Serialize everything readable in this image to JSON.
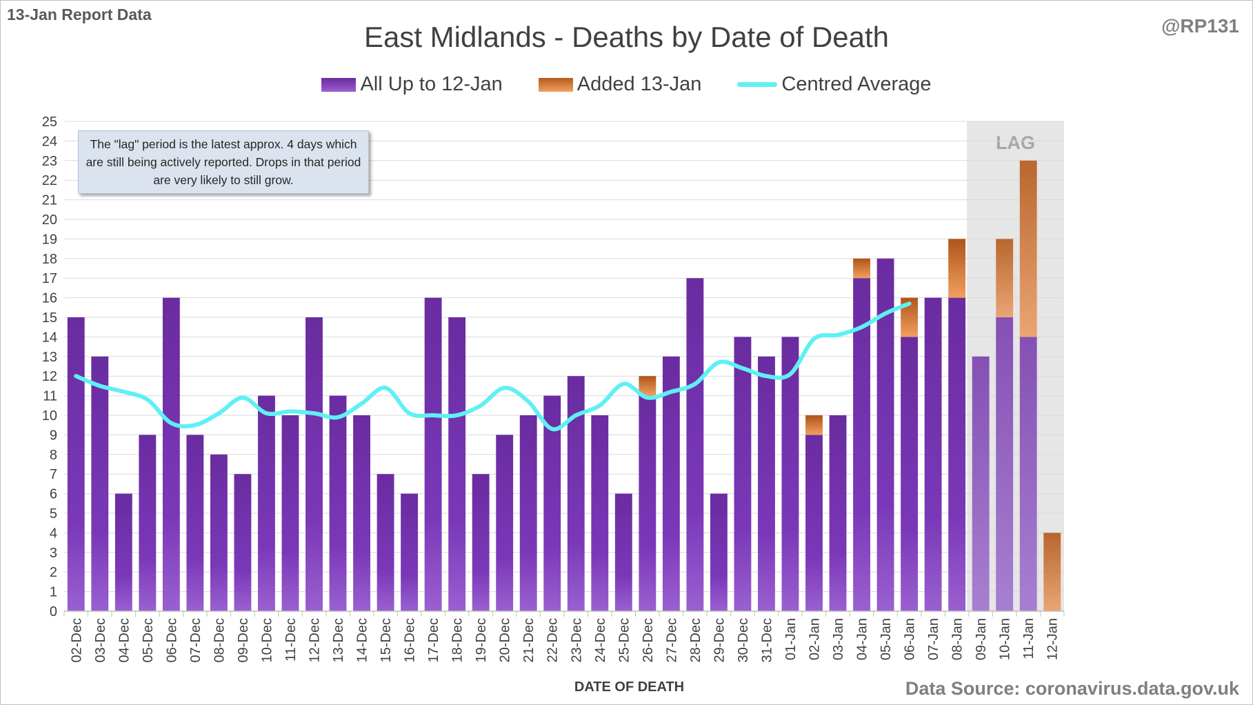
{
  "report_label": "13-Jan Report Data",
  "author": "@RP131",
  "source": "Data Source: coronavirus.data.gov.uk",
  "annotation": "The \"lag\" period is the latest approx. 4 days which are still being actively reported.  Drops in that period are very likely to still grow.",
  "colors": {
    "all_series": "#7030a0",
    "added_series": "#c55a11",
    "average_line": "#5ff0f5",
    "lag_shade": "#e6e6e6"
  },
  "chart_data": {
    "type": "bar",
    "title": "East Midlands - Deaths by Date of Death",
    "xlabel": "DATE OF DEATH",
    "ylabel": "",
    "ylim": [
      0,
      25
    ],
    "yticks": [
      0,
      1,
      2,
      3,
      4,
      5,
      6,
      7,
      8,
      9,
      10,
      11,
      12,
      13,
      14,
      15,
      16,
      17,
      18,
      19,
      20,
      21,
      22,
      23,
      24,
      25
    ],
    "grid": true,
    "stacked": true,
    "legend_position": "top",
    "lag_label": "LAG",
    "lag_categories": [
      "09-Jan",
      "10-Jan",
      "11-Jan",
      "12-Jan"
    ],
    "categories": [
      "02-Dec",
      "03-Dec",
      "04-Dec",
      "05-Dec",
      "06-Dec",
      "07-Dec",
      "08-Dec",
      "09-Dec",
      "10-Dec",
      "11-Dec",
      "12-Dec",
      "13-Dec",
      "14-Dec",
      "15-Dec",
      "16-Dec",
      "17-Dec",
      "18-Dec",
      "19-Dec",
      "20-Dec",
      "21-Dec",
      "22-Dec",
      "23-Dec",
      "24-Dec",
      "25-Dec",
      "26-Dec",
      "27-Dec",
      "28-Dec",
      "29-Dec",
      "30-Dec",
      "31-Dec",
      "01-Jan",
      "02-Jan",
      "03-Jan",
      "04-Jan",
      "05-Jan",
      "06-Jan",
      "07-Jan",
      "08-Jan",
      "09-Jan",
      "10-Jan",
      "11-Jan",
      "12-Jan"
    ],
    "series": [
      {
        "name": "All Up to 12-Jan",
        "values": [
          15,
          13,
          6,
          9,
          16,
          9,
          8,
          7,
          11,
          10,
          15,
          11,
          10,
          7,
          6,
          16,
          15,
          7,
          9,
          10,
          11,
          12,
          10,
          6,
          11,
          13,
          17,
          6,
          14,
          13,
          14,
          9,
          10,
          17,
          18,
          14,
          16,
          16,
          13,
          15,
          14,
          0
        ]
      },
      {
        "name": "Added 13-Jan",
        "values": [
          0,
          0,
          0,
          0,
          0,
          0,
          0,
          0,
          0,
          0,
          0,
          0,
          0,
          0,
          0,
          0,
          0,
          0,
          0,
          0,
          0,
          0,
          0,
          0,
          1,
          0,
          0,
          0,
          0,
          0,
          0,
          1,
          0,
          1,
          0,
          2,
          0,
          3,
          0,
          4,
          9,
          4
        ]
      },
      {
        "name": "Centred Average",
        "type": "line",
        "values": [
          12,
          11.5,
          11.2,
          10.8,
          9.6,
          9.5,
          10.1,
          10.9,
          10.1,
          10.2,
          10.1,
          9.9,
          10.6,
          11.4,
          10.1,
          10,
          10,
          10.5,
          11.4,
          10.7,
          9.3,
          10,
          10.5,
          11.6,
          10.9,
          11.2,
          11.6,
          12.7,
          12.4,
          12,
          12.1,
          13.9,
          14.1,
          14.5,
          15.2,
          15.7,
          null,
          null,
          null,
          null,
          null,
          null
        ]
      }
    ]
  }
}
